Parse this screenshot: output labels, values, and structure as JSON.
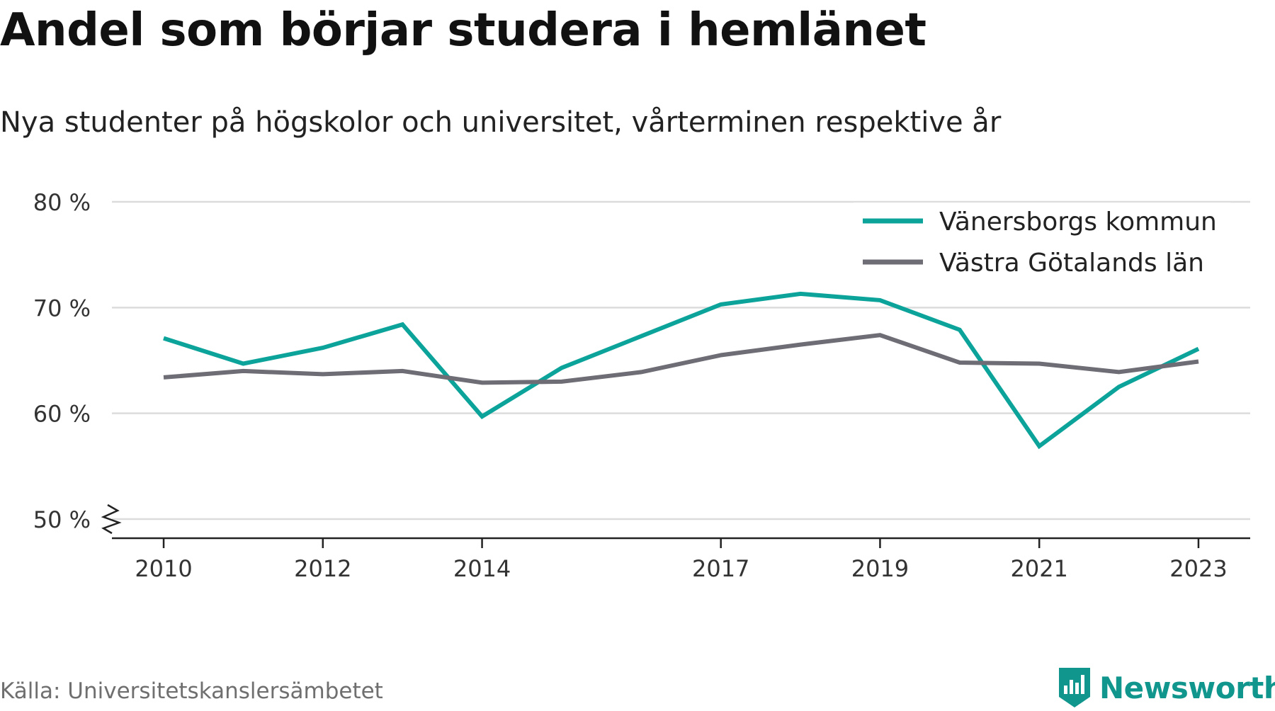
{
  "title": "Andel som börjar studera i hemlänet",
  "subtitle": "Nya studenter på högskolor och universitet, vårterminen respektive år",
  "source": "Källa: Universitetskanslersämbetet",
  "brand": {
    "name": "Newsworthy",
    "color": "#11968e",
    "icon": "newsworthy-logo-icon"
  },
  "chart_data": {
    "type": "line",
    "x": [
      2010,
      2011,
      2012,
      2013,
      2014,
      2015,
      2016,
      2017,
      2018,
      2019,
      2020,
      2021,
      2022,
      2023
    ],
    "xticks": [
      2010,
      2012,
      2014,
      2017,
      2019,
      2021,
      2023
    ],
    "xtick_labels": [
      "2010",
      "2012",
      "2014",
      "2017",
      "2019",
      "2021",
      "2023"
    ],
    "yticks": [
      50,
      60,
      70,
      80
    ],
    "ytick_labels": [
      "50 %",
      "60 %",
      "70 %",
      "80 %"
    ],
    "ylim": [
      50,
      80
    ],
    "xlim": [
      2009.35,
      2023.65
    ],
    "y_axis_break": true,
    "grid": true,
    "legend_position": "top-right",
    "series": [
      {
        "name": "Vänersborgs kommun",
        "color": "#0ca39a",
        "values": [
          67.1,
          64.7,
          66.2,
          68.4,
          59.7,
          64.3,
          67.3,
          70.3,
          71.3,
          70.7,
          67.9,
          56.9,
          62.5,
          66.1
        ]
      },
      {
        "name": "Västra Götalands län",
        "color": "#6e6c74",
        "values": [
          63.4,
          64.0,
          63.7,
          64.0,
          62.9,
          63.0,
          63.9,
          65.5,
          66.5,
          67.4,
          64.8,
          64.7,
          63.9,
          64.9
        ]
      }
    ]
  }
}
